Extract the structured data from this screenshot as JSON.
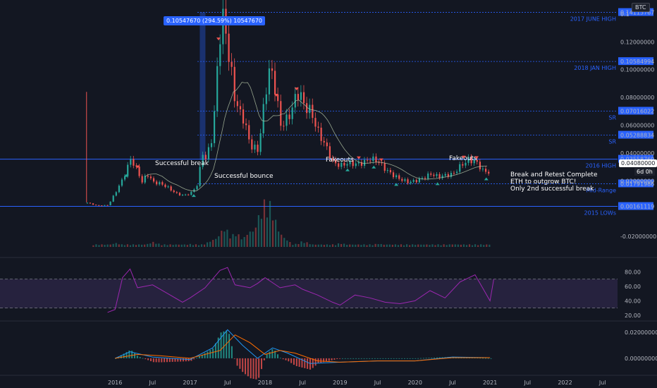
{
  "chart_data": {
    "type": "candlestick",
    "symbol_badge": "BTC",
    "measure_label": "0.10547670 (294.59%) 10547670",
    "x_ticks": [
      "2016",
      "Jul",
      "2017",
      "Jul",
      "2018",
      "Jul",
      "2019",
      "Jul",
      "2020",
      "Jul",
      "2021",
      "Jul",
      "2022",
      "Jul"
    ],
    "y_ticks": [
      "0.1400000",
      "0.12000000",
      "0.10000000",
      "0.08000000",
      "0.06000000",
      "0.04000000",
      "0.02000000",
      "-0.02000000"
    ],
    "y_ticks_prefix": "0.1",
    "levels": [
      {
        "name": "2017 JUNE HIGH",
        "value": "0.14115767"
      },
      {
        "name": "2018 JAN HIGH",
        "value": "0.10584994"
      },
      {
        "name": "SR",
        "value": "0.07016022"
      },
      {
        "name": "SR",
        "value": "0.05288834"
      },
      {
        "name": "2016 HIGH",
        "value": "0.03558760"
      },
      {
        "name": "Mid-Range",
        "value": "0.01791986"
      },
      {
        "name": "2015 LOWs",
        "value": "0.00161119"
      }
    ],
    "last_price": "0.04080000",
    "countdown": "6d 0h",
    "annotations": {
      "successful_break": "Successful break",
      "successful_bounce": "Successful bounce",
      "fakeouts_1": "Fakeouts",
      "fakeouts_2": "Fakeouts",
      "break_retest": [
        "Break and Retest Complete",
        "ETH to outgrow BTC!",
        "Only 2nd successful break"
      ]
    },
    "price_series": {
      "x": [
        2015.6,
        2015.75,
        2015.9,
        2016.0,
        2016.1,
        2016.2,
        2016.3,
        2016.35,
        2016.42,
        2016.5,
        2016.6,
        2016.7,
        2016.8,
        2016.9,
        2017.0,
        2017.1,
        2017.15,
        2017.2,
        2017.3,
        2017.35,
        2017.4,
        2017.45,
        2017.5,
        2017.55,
        2017.6,
        2017.7,
        2017.8,
        2017.9,
        2018.0,
        2018.05,
        2018.1,
        2018.2,
        2018.3,
        2018.4,
        2018.45,
        2018.5,
        2018.6,
        2018.7,
        2018.8,
        2018.9,
        2019.0,
        2019.1,
        2019.2,
        2019.3,
        2019.4,
        2019.5,
        2019.6,
        2019.7,
        2019.8,
        2019.9,
        2020.0,
        2020.1,
        2020.2,
        2020.3,
        2020.4,
        2020.5,
        2020.6,
        2020.7,
        2020.8,
        2020.9,
        2021.0,
        2021.05
      ],
      "y": [
        0.0045,
        0.0022,
        0.0025,
        0.012,
        0.022,
        0.036,
        0.026,
        0.019,
        0.025,
        0.019,
        0.018,
        0.015,
        0.011,
        0.0095,
        0.011,
        0.018,
        0.042,
        0.035,
        0.055,
        0.1,
        0.13,
        0.14,
        0.11,
        0.095,
        0.075,
        0.065,
        0.045,
        0.042,
        0.085,
        0.1,
        0.095,
        0.06,
        0.065,
        0.08,
        0.085,
        0.075,
        0.07,
        0.055,
        0.045,
        0.033,
        0.031,
        0.033,
        0.032,
        0.033,
        0.036,
        0.034,
        0.028,
        0.024,
        0.021,
        0.019,
        0.02,
        0.022,
        0.025,
        0.023,
        0.024,
        0.025,
        0.031,
        0.035,
        0.034,
        0.027,
        0.026,
        0.039
      ]
    },
    "volume": {
      "scale_note": "relative heights",
      "x": [
        2016.0,
        2016.5,
        2017.0,
        2017.3,
        2017.45,
        2017.6,
        2017.8,
        2017.95,
        2018.0,
        2018.05,
        2018.1,
        2018.2,
        2018.5,
        2019.0,
        2019.5,
        2020.0,
        2020.5,
        2021.0
      ],
      "v": [
        0.08,
        0.1,
        0.06,
        0.15,
        0.4,
        0.3,
        0.35,
        0.8,
        1.0,
        0.9,
        0.55,
        0.25,
        0.12,
        0.08,
        0.07,
        0.05,
        0.06,
        0.05
      ]
    },
    "rsi": {
      "y_ticks": [
        "80.00",
        "60.00",
        "40.00",
        "20.00"
      ],
      "x": [
        2015.9,
        2016.0,
        2016.1,
        2016.2,
        2016.3,
        2016.5,
        2016.7,
        2016.9,
        2017.0,
        2017.2,
        2017.4,
        2017.5,
        2017.6,
        2017.8,
        2017.9,
        2018.0,
        2018.2,
        2018.4,
        2018.5,
        2018.7,
        2018.9,
        2019.0,
        2019.2,
        2019.4,
        2019.6,
        2019.8,
        2020.0,
        2020.2,
        2020.4,
        2020.6,
        2020.8,
        2020.9,
        2021.0,
        2021.05
      ],
      "y": [
        24,
        28,
        72,
        84,
        58,
        62,
        50,
        38,
        44,
        58,
        82,
        86,
        62,
        58,
        64,
        72,
        58,
        62,
        56,
        48,
        38,
        34,
        48,
        44,
        38,
        36,
        40,
        54,
        44,
        66,
        76,
        58,
        40,
        70
      ]
    },
    "macd": {
      "y_ticks": [
        "0.02000000",
        "0.00000000"
      ],
      "macd": {
        "x": [
          2016.0,
          2016.2,
          2016.5,
          2017.0,
          2017.3,
          2017.5,
          2017.7,
          2017.9,
          2018.1,
          2018.3,
          2018.6,
          2019.0,
          2019.5,
          2020.0,
          2020.5,
          2021.0
        ],
        "y": [
          0.0,
          0.005,
          0.001,
          -0.001,
          0.008,
          0.022,
          0.01,
          0.0,
          0.008,
          0.004,
          -0.004,
          -0.003,
          -0.002,
          -0.002,
          0.001,
          0.0005
        ]
      },
      "signal": {
        "x": [
          2016.0,
          2016.3,
          2016.6,
          2017.0,
          2017.4,
          2017.6,
          2017.8,
          2018.0,
          2018.2,
          2018.4,
          2018.7,
          2019.0,
          2019.5,
          2020.0,
          2020.5,
          2021.0
        ],
        "y": [
          0.0,
          0.003,
          0.002,
          0.0,
          0.006,
          0.018,
          0.012,
          0.003,
          0.006,
          0.004,
          -0.002,
          -0.003,
          -0.002,
          -0.002,
          0.0005,
          0.0005
        ]
      }
    }
  },
  "colors": {
    "bg": "#131722",
    "grid": "#2a2e39",
    "text": "#b2b5be",
    "up": "#26a69a",
    "down": "#ef5350",
    "level_line": "#2962ff",
    "level_label": "#2962ff",
    "rsi_line": "#9c27b0",
    "rsi_band": "#7e57c2",
    "macd_line": "#2196f3",
    "signal_line": "#ff6d00",
    "ma": "#b7c7a8"
  }
}
